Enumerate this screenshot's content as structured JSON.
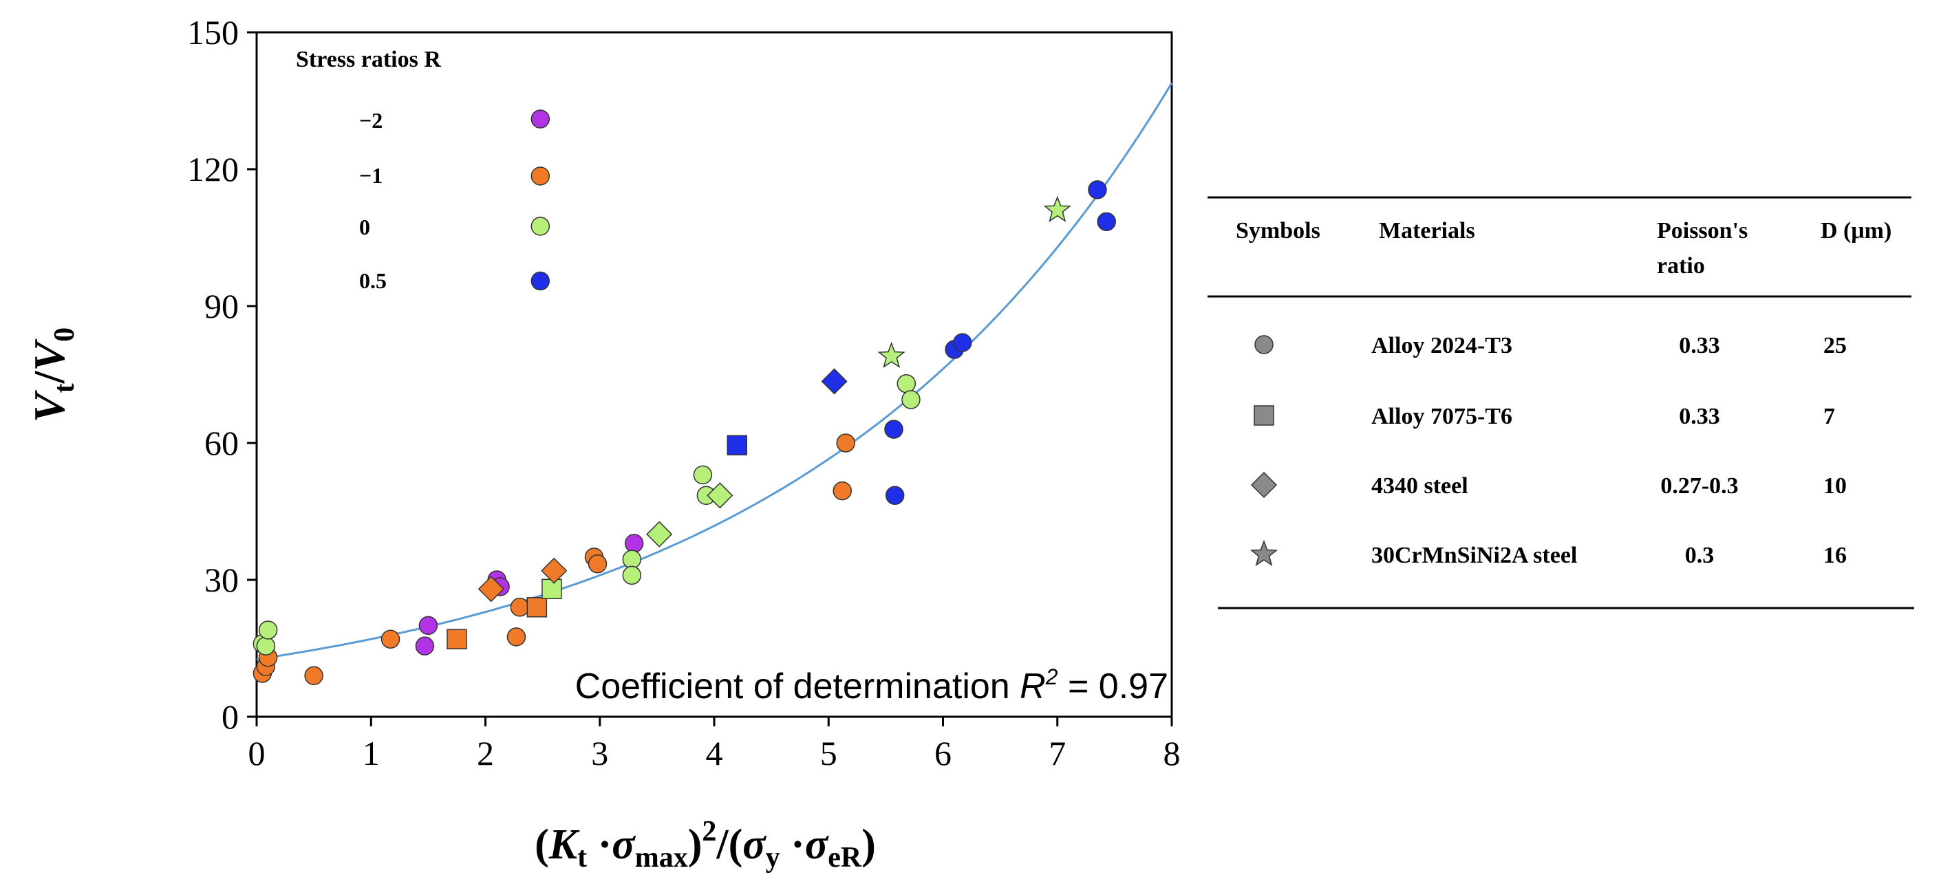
{
  "colors": {
    "r_m2": "#b233e6",
    "r_m1": "#f07a28",
    "r_0": "#b6f07a",
    "r_05": "#1f2fe8",
    "fit": "#5b9bd5",
    "symbol_gray": "#8a8a8a"
  },
  "chart_data": {
    "type": "scatter",
    "xlabel": {
      "open": "(",
      "K": "K",
      "K_sub": "t",
      "dot1": " ·",
      "sigma1": "σ",
      "sigma1_sub": "max",
      "close_open": ")",
      "sq": "2",
      "slash_open": "/(",
      "sigma2": "σ",
      "sigma2_sub": "y",
      "dot2": " ·",
      "sigma3": "σ",
      "sigma3_sub": "eR",
      "end": ")"
    },
    "ylabel": {
      "V1": "V",
      "V1_sub": "t",
      "slash": "/",
      "V2": "V",
      "V2_sub": "0"
    },
    "xlim": [
      0,
      8
    ],
    "ylim": [
      0,
      150
    ],
    "xticks": [
      "0",
      "1",
      "2",
      "3",
      "4",
      "5",
      "6",
      "7",
      "8"
    ],
    "yticks": [
      "0",
      "30",
      "60",
      "90",
      "120",
      "150"
    ],
    "annotation": {
      "text": "Coefficient of determination ",
      "R": "R",
      "sup": "2",
      "value": " = 0.97"
    },
    "fit_curve": {
      "model": "exponential",
      "a": 12.6,
      "b": 0.3,
      "x_range": [
        0,
        8
      ]
    },
    "legend_stress": {
      "title": "Stress ratios R",
      "entries": [
        {
          "label": "−2",
          "color_key": "r_m2"
        },
        {
          "label": "−1",
          "color_key": "r_m1"
        },
        {
          "label": "0",
          "color_key": "r_0"
        },
        {
          "label": "0.5",
          "color_key": "r_05"
        }
      ]
    },
    "series": [
      {
        "R": "-2",
        "color_key": "r_m2",
        "marker": "circle",
        "points": [
          [
            1.5,
            20
          ],
          [
            1.47,
            15.5
          ],
          [
            2.1,
            30
          ],
          [
            2.13,
            28.5
          ],
          [
            3.3,
            38
          ],
          [
            2.48,
            131
          ]
        ]
      },
      {
        "R": "-1",
        "color_key": "r_m1",
        "marker": "circle",
        "points": [
          [
            0.05,
            9.5
          ],
          [
            0.08,
            11
          ],
          [
            0.1,
            13
          ],
          [
            0.5,
            9
          ],
          [
            1.17,
            17
          ],
          [
            2.27,
            17.5
          ],
          [
            2.3,
            24
          ],
          [
            2.95,
            35
          ],
          [
            2.98,
            33.5
          ],
          [
            5.15,
            60
          ],
          [
            5.12,
            49.5
          ],
          [
            2.48,
            118.5
          ]
        ]
      },
      {
        "R": "0",
        "color_key": "r_0",
        "marker": "circle",
        "points": [
          [
            0.05,
            16
          ],
          [
            0.08,
            15.5
          ],
          [
            0.1,
            19
          ],
          [
            3.28,
            34.5
          ],
          [
            3.28,
            31
          ],
          [
            3.9,
            53
          ],
          [
            3.93,
            48.5
          ],
          [
            5.68,
            73
          ],
          [
            5.72,
            69.5
          ],
          [
            2.48,
            107.5
          ]
        ]
      },
      {
        "R": "0.5",
        "color_key": "r_05",
        "marker": "circle",
        "points": [
          [
            5.57,
            63
          ],
          [
            5.58,
            48.5
          ],
          [
            6.1,
            80.5
          ],
          [
            6.17,
            82
          ],
          [
            7.35,
            115.5
          ],
          [
            7.43,
            108.5
          ],
          [
            2.48,
            95.5
          ]
        ]
      },
      {
        "R": "-1",
        "color_key": "r_m1",
        "marker": "square",
        "points": [
          [
            1.75,
            17
          ],
          [
            2.45,
            24
          ]
        ]
      },
      {
        "R": "0",
        "color_key": "r_0",
        "marker": "square",
        "points": [
          [
            2.58,
            28
          ]
        ]
      },
      {
        "R": "0.5",
        "color_key": "r_05",
        "marker": "square",
        "points": [
          [
            4.2,
            59.5
          ]
        ]
      },
      {
        "R": "-1",
        "color_key": "r_m1",
        "marker": "diamond",
        "points": [
          [
            2.05,
            28
          ],
          [
            2.6,
            32
          ]
        ]
      },
      {
        "R": "0",
        "color_key": "r_0",
        "marker": "diamond",
        "points": [
          [
            3.52,
            40
          ],
          [
            4.05,
            48.5
          ]
        ]
      },
      {
        "R": "0.5",
        "color_key": "r_05",
        "marker": "diamond",
        "points": [
          [
            5.05,
            73.5
          ]
        ]
      },
      {
        "R": "0",
        "color_key": "r_0",
        "marker": "star",
        "points": [
          [
            5.55,
            79
          ],
          [
            7.0,
            111
          ]
        ]
      }
    ],
    "materials_table": {
      "headers": [
        "Symbols",
        "Materials",
        "Poisson's",
        "ratio",
        "D (μm)"
      ],
      "rows": [
        {
          "symbol": "circle",
          "material": "Alloy 2024-T3",
          "poisson": "0.33",
          "d": "25"
        },
        {
          "symbol": "square",
          "material": "Alloy 7075-T6",
          "poisson": "0.33",
          "d": "7"
        },
        {
          "symbol": "diamond",
          "material": "4340 steel",
          "poisson": "0.27-0.3",
          "d": "10"
        },
        {
          "symbol": "star",
          "material": "30CrMnSiNi2A steel",
          "poisson": "0.3",
          "d": "16"
        }
      ]
    }
  }
}
